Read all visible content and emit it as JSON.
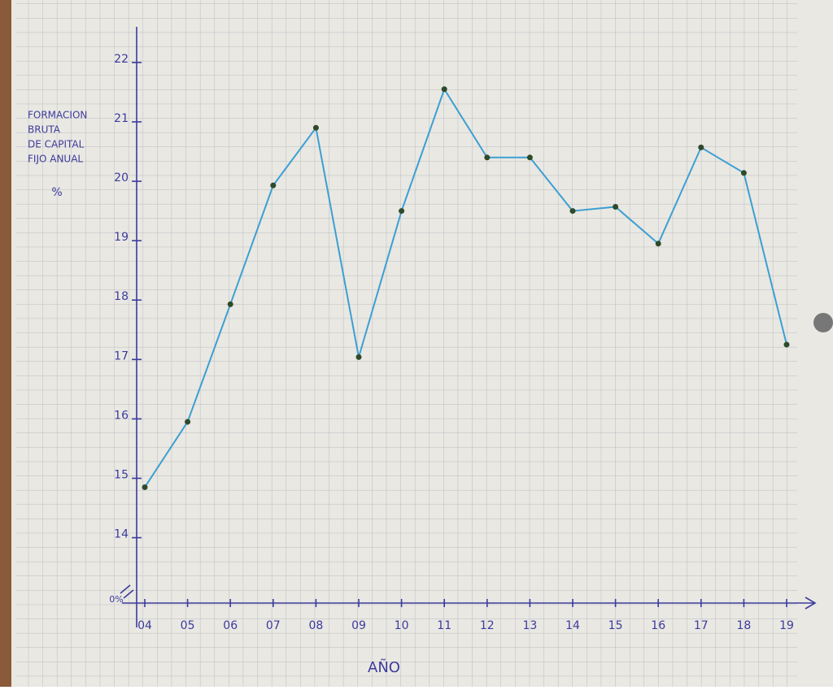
{
  "chart_data": {
    "type": "line",
    "y_label": [
      "FORMACION",
      "BRUTA",
      "DE CAPITAL",
      "FIJO ANUAL"
    ],
    "y_unit": "%",
    "y_origin_label": "0%",
    "x_label": "AÑO",
    "categories": [
      "04",
      "05",
      "06",
      "07",
      "08",
      "09",
      "10",
      "11",
      "12",
      "13",
      "14",
      "15",
      "16",
      "17",
      "18",
      "19"
    ],
    "series": [
      {
        "name": "Formacion bruta de capital fijo anual",
        "color": "#3d9fd2",
        "values": [
          14.85,
          15.95,
          17.93,
          19.93,
          20.9,
          17.04,
          19.5,
          21.55,
          20.4,
          20.4,
          19.5,
          19.57,
          18.95,
          20.57,
          20.14,
          17.25
        ]
      }
    ],
    "ylim": [
      12.9,
      22.6
    ],
    "yticks": [
      14,
      15,
      16,
      17,
      18,
      19,
      20,
      21,
      22
    ],
    "grid": true
  }
}
